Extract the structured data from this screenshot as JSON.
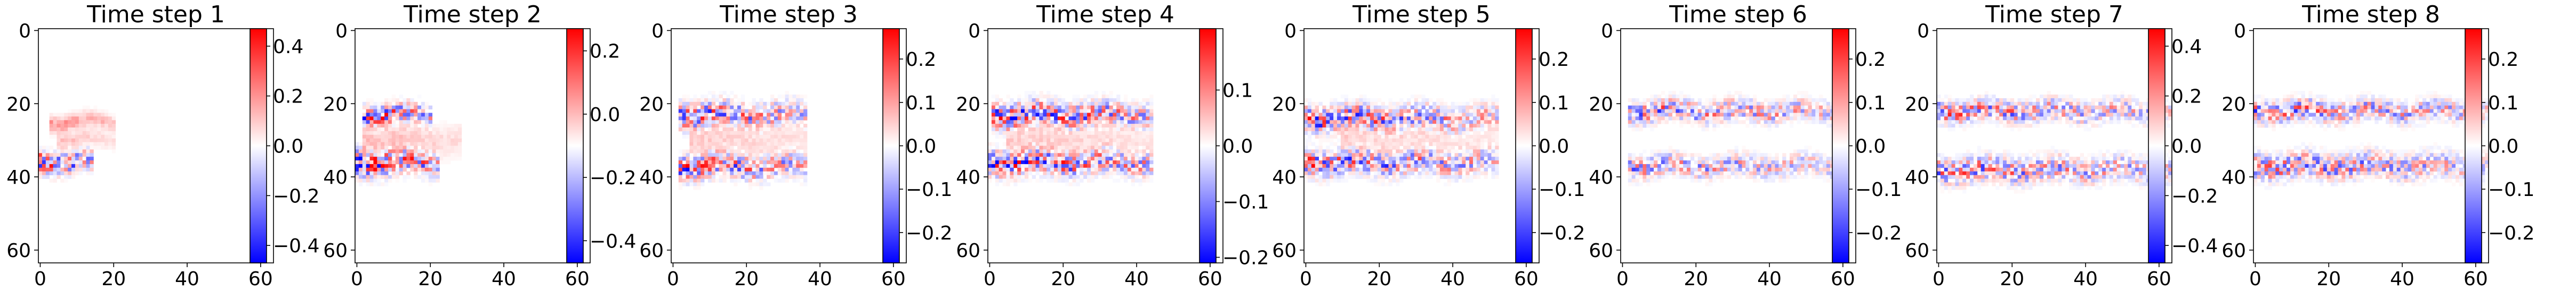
{
  "chart_data": [
    {
      "type": "heatmap",
      "title": "Time step 1",
      "xticks": [
        "0",
        "20",
        "40",
        "60"
      ],
      "yticks": [
        "0",
        "20",
        "40",
        "60"
      ],
      "xlim": [
        -0.5,
        63.5
      ],
      "ylim": [
        63.5,
        -0.5
      ],
      "colorbar": {
        "cmap": "bwr",
        "vmin": -0.47,
        "vmax": 0.47,
        "ticks": [
          -0.4,
          -0.2,
          0.0,
          0.2,
          0.4
        ],
        "ticklabels": [
          "−0.4",
          "−0.2",
          "0.0",
          "0.2",
          "0.4"
        ]
      },
      "features": [
        {
          "x0": 0,
          "x1": 14,
          "yc": 36,
          "spread": 2.5,
          "sign": "mixed",
          "intensity": 0.45
        },
        {
          "x0": 3,
          "x1": 20,
          "yc": 25,
          "spread": 2,
          "sign": "positive",
          "intensity": 0.25
        },
        {
          "x0": 5,
          "x1": 20,
          "yc": 30,
          "spread": 2,
          "sign": "positive",
          "intensity": 0.15
        }
      ]
    },
    {
      "type": "heatmap",
      "title": "Time step 2",
      "xticks": [
        "0",
        "20",
        "40",
        "60"
      ],
      "yticks": [
        "0",
        "20",
        "40",
        "60"
      ],
      "xlim": [
        -0.5,
        63.5
      ],
      "ylim": [
        63.5,
        -0.5
      ],
      "colorbar": {
        "cmap": "bwr",
        "vmin": -0.47,
        "vmax": 0.27,
        "ticks": [
          -0.4,
          -0.2,
          0.0,
          0.2
        ],
        "ticklabels": [
          "−0.4",
          "−0.2",
          "0.0",
          "0.2"
        ]
      },
      "features": [
        {
          "x0": 2,
          "x1": 20,
          "yc": 23,
          "spread": 2.5,
          "sign": "mixed",
          "intensity": 0.4
        },
        {
          "x0": 2,
          "x1": 28,
          "yc": 30,
          "spread": 4,
          "sign": "positive",
          "intensity": 0.15
        },
        {
          "x0": 0,
          "x1": 22,
          "yc": 36,
          "spread": 3,
          "sign": "mixed",
          "intensity": 0.45
        }
      ]
    },
    {
      "type": "heatmap",
      "title": "Time step 3",
      "xticks": [
        "0",
        "20",
        "40",
        "60"
      ],
      "yticks": [
        "0",
        "20",
        "40",
        "60"
      ],
      "xlim": [
        -0.5,
        63.5
      ],
      "ylim": [
        63.5,
        -0.5
      ],
      "colorbar": {
        "cmap": "bwr",
        "vmin": -0.27,
        "vmax": 0.27,
        "ticks": [
          -0.2,
          -0.1,
          0.0,
          0.1,
          0.2
        ],
        "ticklabels": [
          "−0.2",
          "−0.1",
          "0.0",
          "0.1",
          "0.2"
        ]
      },
      "features": [
        {
          "x0": 2,
          "x1": 36,
          "yc": 23,
          "spread": 3,
          "sign": "mixed",
          "intensity": 0.35
        },
        {
          "x0": 5,
          "x1": 36,
          "yc": 30,
          "spread": 4,
          "sign": "positive",
          "intensity": 0.12
        },
        {
          "x0": 2,
          "x1": 36,
          "yc": 37,
          "spread": 3,
          "sign": "mixed",
          "intensity": 0.35
        }
      ]
    },
    {
      "type": "heatmap",
      "title": "Time step 4",
      "xticks": [
        "0",
        "20",
        "40",
        "60"
      ],
      "yticks": [
        "0",
        "20",
        "40",
        "60"
      ],
      "xlim": [
        -0.5,
        63.5
      ],
      "ylim": [
        63.5,
        -0.5
      ],
      "colorbar": {
        "cmap": "bwr",
        "vmin": -0.21,
        "vmax": 0.21,
        "ticks": [
          -0.2,
          -0.1,
          0.0,
          0.1
        ],
        "ticklabels": [
          "−0.2",
          "−0.1",
          "0.0",
          "0.1"
        ]
      },
      "features": [
        {
          "x0": 1,
          "x1": 44,
          "yc": 23,
          "spread": 3,
          "sign": "mixed",
          "intensity": 0.4
        },
        {
          "x0": 5,
          "x1": 44,
          "yc": 30,
          "spread": 4,
          "sign": "positive",
          "intensity": 0.12
        },
        {
          "x0": 0,
          "x1": 44,
          "yc": 36,
          "spread": 3,
          "sign": "mixed",
          "intensity": 0.4
        }
      ]
    },
    {
      "type": "heatmap",
      "title": "Time step 5",
      "xticks": [
        "0",
        "20",
        "40",
        "60"
      ],
      "yticks": [
        "0",
        "20",
        "40",
        "60"
      ],
      "xlim": [
        -0.5,
        63.5
      ],
      "ylim": [
        63.5,
        -0.5
      ],
      "colorbar": {
        "cmap": "bwr",
        "vmin": -0.27,
        "vmax": 0.27,
        "ticks": [
          -0.2,
          -0.1,
          0.0,
          0.1,
          0.2
        ],
        "ticklabels": [
          "−0.2",
          "−0.1",
          "0.0",
          "0.1",
          "0.2"
        ]
      },
      "features": [
        {
          "x0": 0,
          "x1": 52,
          "yc": 24,
          "spread": 3,
          "sign": "mixed",
          "intensity": 0.35
        },
        {
          "x0": 10,
          "x1": 52,
          "yc": 30,
          "spread": 3,
          "sign": "positive",
          "intensity": 0.1
        },
        {
          "x0": 0,
          "x1": 52,
          "yc": 36,
          "spread": 3,
          "sign": "mixed",
          "intensity": 0.35
        }
      ]
    },
    {
      "type": "heatmap",
      "title": "Time step 6",
      "xticks": [
        "0",
        "20",
        "40",
        "60"
      ],
      "yticks": [
        "0",
        "20",
        "40",
        "60"
      ],
      "xlim": [
        -0.5,
        63.5
      ],
      "ylim": [
        63.5,
        -0.5
      ],
      "colorbar": {
        "cmap": "bwr",
        "vmin": -0.27,
        "vmax": 0.27,
        "ticks": [
          -0.2,
          -0.1,
          0.0,
          0.1,
          0.2
        ],
        "ticklabels": [
          "−0.2",
          "−0.1",
          "0.0",
          "0.1",
          "0.2"
        ]
      },
      "features": [
        {
          "x0": 2,
          "x1": 58,
          "yc": 22,
          "spread": 2.5,
          "sign": "mixed",
          "intensity": 0.3
        },
        {
          "x0": 2,
          "x1": 58,
          "yc": 37,
          "spread": 2.5,
          "sign": "mixed",
          "intensity": 0.25
        }
      ]
    },
    {
      "type": "heatmap",
      "title": "Time step 7",
      "xticks": [
        "0",
        "20",
        "40",
        "60"
      ],
      "yticks": [
        "0",
        "20",
        "40",
        "60"
      ],
      "xlim": [
        -0.5,
        63.5
      ],
      "ylim": [
        63.5,
        -0.5
      ],
      "colorbar": {
        "cmap": "bwr",
        "vmin": -0.47,
        "vmax": 0.47,
        "ticks": [
          -0.4,
          -0.2,
          0.0,
          0.2,
          0.4
        ],
        "ticklabels": [
          "−0.4",
          "−0.2",
          "0.0",
          "0.2",
          "0.4"
        ]
      },
      "features": [
        {
          "x0": 0,
          "x1": 63,
          "yc": 22,
          "spread": 2.5,
          "sign": "mixed",
          "intensity": 0.3
        },
        {
          "x0": 0,
          "x1": 63,
          "yc": 38,
          "spread": 3,
          "sign": "mixed",
          "intensity": 0.3
        }
      ]
    },
    {
      "type": "heatmap",
      "title": "Time step 8",
      "xticks": [
        "0",
        "20",
        "40",
        "60"
      ],
      "yticks": [
        "0",
        "20",
        "40",
        "60"
      ],
      "xlim": [
        -0.5,
        63.5
      ],
      "ylim": [
        63.5,
        -0.5
      ],
      "colorbar": {
        "cmap": "bwr",
        "vmin": -0.27,
        "vmax": 0.27,
        "ticks": [
          -0.2,
          -0.1,
          0.0,
          0.1,
          0.2
        ],
        "ticklabels": [
          "−0.2",
          "−0.1",
          "0.0",
          "0.1",
          "0.2"
        ]
      },
      "features": [
        {
          "x0": 0,
          "x1": 63,
          "yc": 22,
          "spread": 2.5,
          "sign": "mixed",
          "intensity": 0.3
        },
        {
          "x0": 0,
          "x1": 63,
          "yc": 37,
          "spread": 3,
          "sign": "mixed",
          "intensity": 0.3
        }
      ]
    }
  ]
}
